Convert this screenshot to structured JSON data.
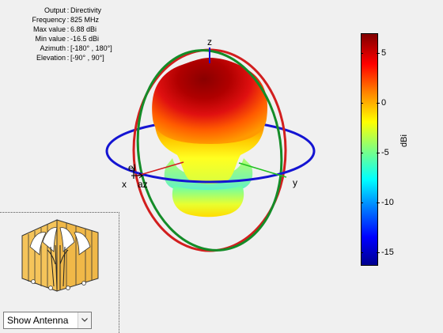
{
  "info": {
    "rows": [
      {
        "key": "Output",
        "value": "Directivity"
      },
      {
        "key": "Frequency",
        "value": "825 MHz"
      },
      {
        "key": "Max value",
        "value": "6.88 dBi"
      },
      {
        "key": "Min value",
        "value": "-16.5 dBi"
      },
      {
        "key": "Azimuth",
        "value": "[-180° , 180°]"
      },
      {
        "key": "Elevation",
        "value": "[-90° , 90°]"
      }
    ]
  },
  "axes": {
    "z": "z",
    "x": "x",
    "y": "y",
    "el": "el",
    "az": "az"
  },
  "colorbar": {
    "title": "dBi",
    "ticks": [
      "5",
      "0",
      "-5",
      "-10",
      "-15"
    ],
    "max": 6.88,
    "min": -16.5,
    "colormap": "jet"
  },
  "antenna_select": {
    "value": "Show Antenna"
  },
  "colors": {
    "ring_azimuth": "#1414d2",
    "ring_elevation_red": "#d21e1e",
    "ring_elevation_green": "#148c28"
  }
}
